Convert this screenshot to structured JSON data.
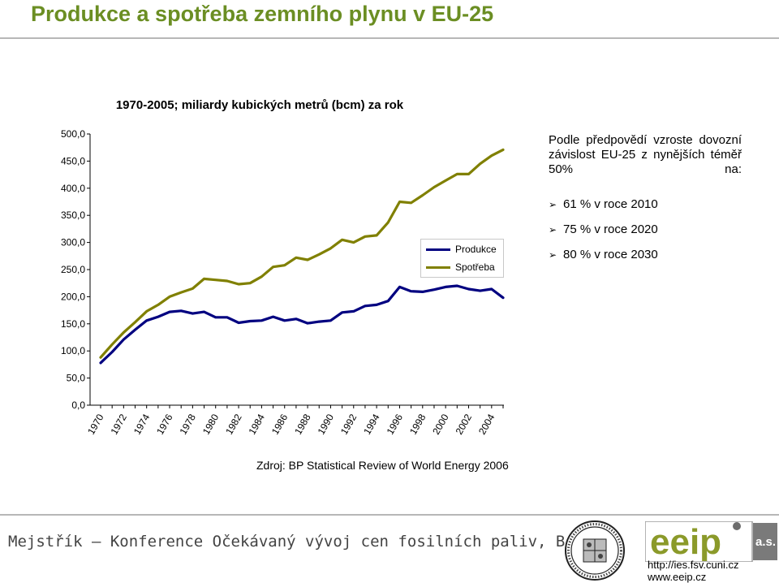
{
  "slide": {
    "title": "Produkce a spotřeba zemního plynu v EU-25",
    "source": "Zdroj: BP Statistical Review of World Energy 2006",
    "footer": "Mejstřík – Konference Očekávaný vývoj cen fosilních paliv, Brno"
  },
  "note": {
    "text": "Podle předpovědí vzroste dovozní závislost EU-25 z nynějších téměř 50% na:",
    "bullets": [
      "61 % v roce 2010",
      "75 % v roce 2020",
      "80 % v roce 2030"
    ]
  },
  "logos": {
    "eeip_text": "eeip",
    "as_text": "a.s.",
    "url1": "http://ies.fsv.cuni.cz",
    "url2": "www.eeip.cz"
  },
  "colors": {
    "title": "#6b8e23",
    "produkce": "#000080",
    "spotreba": "#808000"
  },
  "chart_data": {
    "type": "line",
    "title": "1970-2005; miliardy kubických metrů (bcm) za rok",
    "xlabel": "",
    "ylabel": "",
    "x": [
      1970,
      1971,
      1972,
      1973,
      1974,
      1975,
      1976,
      1977,
      1978,
      1979,
      1980,
      1981,
      1982,
      1983,
      1984,
      1985,
      1986,
      1987,
      1988,
      1989,
      1990,
      1991,
      1992,
      1993,
      1994,
      1995,
      1996,
      1997,
      1998,
      1999,
      2000,
      2001,
      2002,
      2003,
      2004,
      2005
    ],
    "x_tick_labels": [
      "1970",
      "1972",
      "1974",
      "1976",
      "1978",
      "1980",
      "1982",
      "1984",
      "1986",
      "1988",
      "1990",
      "1992",
      "1994",
      "1996",
      "1998",
      "2000",
      "2002",
      "2004"
    ],
    "ylim": [
      0,
      500
    ],
    "y_tick_labels": [
      "0,0",
      "50,0",
      "100,0",
      "150,0",
      "200,0",
      "250,0",
      "300,0",
      "350,0",
      "400,0",
      "450,0",
      "500,0"
    ],
    "grid": false,
    "legend_position": "right",
    "series": [
      {
        "name": "Produkce",
        "values": [
          78,
          98,
          121,
          139,
          156,
          163,
          172,
          174,
          169,
          172,
          162,
          162,
          152,
          155,
          156,
          163,
          156,
          159,
          151,
          154,
          156,
          171,
          173,
          183,
          185,
          192,
          218,
          210,
          209,
          213,
          218,
          220,
          214,
          211,
          214,
          198
        ]
      },
      {
        "name": "Spotřeba",
        "values": [
          88,
          112,
          134,
          153,
          173,
          185,
          200,
          208,
          215,
          233,
          231,
          229,
          223,
          225,
          237,
          255,
          258,
          272,
          268,
          278,
          289,
          305,
          300,
          311,
          313,
          337,
          375,
          373,
          387,
          402,
          414,
          426,
          426,
          445,
          460,
          471
        ]
      }
    ]
  }
}
